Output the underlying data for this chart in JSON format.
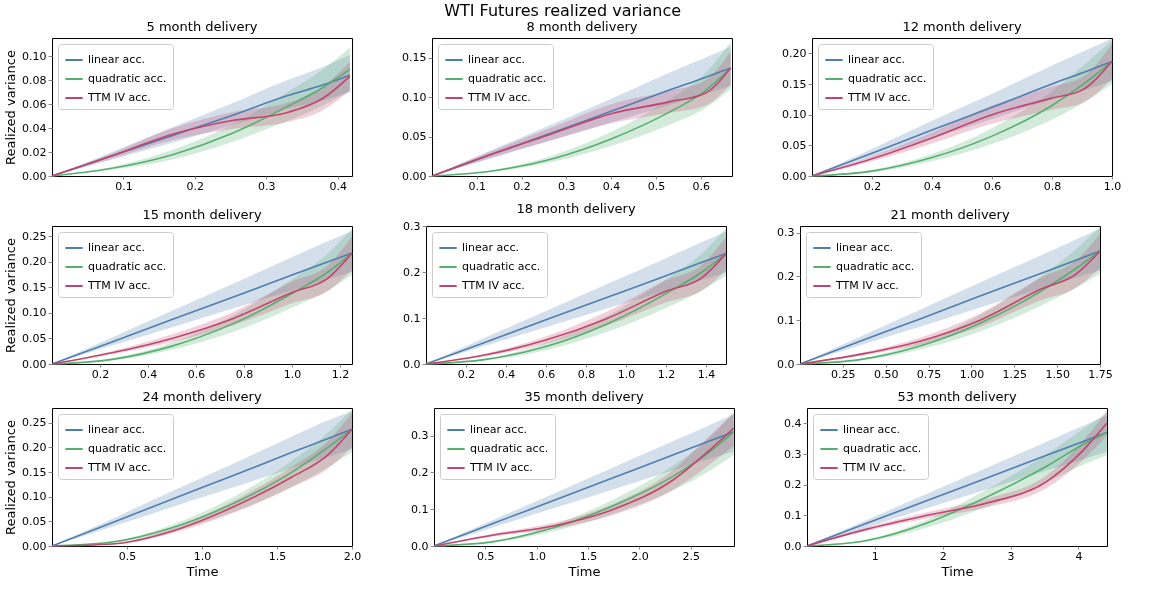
{
  "chart_data": [
    {
      "type": "line",
      "title": "5 month delivery",
      "ylabel": "Realized variance",
      "annotations": [
        "WTI Futures realized variance"
      ],
      "legend": "top left",
      "x": [
        0,
        0.08,
        0.17,
        0.25,
        0.33,
        0.38,
        0.417
      ],
      "xlim": [
        0,
        0.42
      ],
      "xticks": [
        0.1,
        0.2,
        0.3,
        0.4
      ],
      "ylim": [
        0,
        0.115
      ],
      "yticks": [
        {
          "value": 0,
          "label": "0.00"
        },
        {
          "value": 0.02,
          "label": "0.02"
        },
        {
          "value": 0.04,
          "label": "0.04"
        },
        {
          "value": 0.06,
          "label": "0.06"
        },
        {
          "value": 0.08,
          "label": "0.08"
        },
        {
          "value": 0.1,
          "label": "0.10"
        }
      ],
      "series": [
        {
          "name": "linear acc.",
          "color": "#4f7fb0",
          "values": [
            0,
            0.016,
            0.034,
            0.05,
            0.067,
            0.076,
            0.084
          ],
          "upper": [
            0,
            0.019,
            0.041,
            0.06,
            0.08,
            0.091,
            0.101
          ],
          "lower": [
            0,
            0.013,
            0.028,
            0.042,
            0.056,
            0.063,
            0.07
          ]
        },
        {
          "name": "quadratic acc.",
          "color": "#55b06e",
          "values": [
            0,
            0.006,
            0.018,
            0.035,
            0.058,
            0.074,
            0.089
          ],
          "upper": [
            0,
            0.007,
            0.022,
            0.042,
            0.07,
            0.089,
            0.107
          ],
          "lower": [
            0,
            0.005,
            0.014,
            0.028,
            0.046,
            0.059,
            0.071
          ]
        },
        {
          "name": "TTM IV acc.",
          "color": "#c2456e",
          "values": [
            0,
            0.016,
            0.035,
            0.046,
            0.053,
            0.065,
            0.083
          ],
          "upper": [
            0,
            0.018,
            0.04,
            0.053,
            0.061,
            0.075,
            0.095
          ],
          "lower": [
            0,
            0.014,
            0.03,
            0.039,
            0.045,
            0.055,
            0.071
          ]
        }
      ]
    },
    {
      "type": "line",
      "title": "8 month delivery",
      "legend": "top left",
      "x": [
        0,
        0.13,
        0.27,
        0.4,
        0.53,
        0.61,
        0.667
      ],
      "xlim": [
        0,
        0.67
      ],
      "xticks": [
        0.1,
        0.2,
        0.3,
        0.4,
        0.5,
        0.6
      ],
      "ylim": [
        0,
        0.175
      ],
      "yticks": [
        {
          "value": 0,
          "label": "0.00"
        },
        {
          "value": 0.05,
          "label": "0.05"
        },
        {
          "value": 0.1,
          "label": "0.10"
        },
        {
          "value": 0.15,
          "label": "0.15"
        }
      ],
      "series": [
        {
          "name": "linear acc.",
          "color": "#4f7fb0",
          "values": [
            0,
            0.027,
            0.055,
            0.082,
            0.109,
            0.125,
            0.137
          ],
          "upper": [
            0,
            0.032,
            0.066,
            0.098,
            0.131,
            0.15,
            0.164
          ],
          "lower": [
            0,
            0.022,
            0.046,
            0.068,
            0.09,
            0.104,
            0.114
          ]
        },
        {
          "name": "quadratic acc.",
          "color": "#55b06e",
          "values": [
            0,
            0.006,
            0.022,
            0.047,
            0.081,
            0.108,
            0.137
          ],
          "upper": [
            0,
            0.007,
            0.026,
            0.056,
            0.097,
            0.13,
            0.17
          ],
          "lower": [
            0,
            0.005,
            0.018,
            0.038,
            0.065,
            0.086,
            0.11
          ]
        },
        {
          "name": "TTM IV acc.",
          "color": "#c2456e",
          "values": [
            0,
            0.027,
            0.054,
            0.079,
            0.094,
            0.105,
            0.137
          ],
          "upper": [
            0,
            0.031,
            0.062,
            0.091,
            0.108,
            0.121,
            0.158
          ],
          "lower": [
            0,
            0.023,
            0.046,
            0.067,
            0.08,
            0.089,
            0.116
          ]
        }
      ]
    },
    {
      "type": "line",
      "title": "12 month delivery",
      "legend": "top left",
      "x": [
        0,
        0.2,
        0.4,
        0.6,
        0.8,
        0.9,
        1.0
      ],
      "xlim": [
        0,
        1.0
      ],
      "xticks": [
        0.2,
        0.4,
        0.6,
        0.8,
        {
          "value": 1.0,
          "label": "1.0"
        }
      ],
      "ylim": [
        0,
        0.225
      ],
      "yticks": [
        {
          "value": 0,
          "label": "0.00"
        },
        {
          "value": 0.05,
          "label": "0.05"
        },
        {
          "value": 0.1,
          "label": "0.10"
        },
        {
          "value": 0.15,
          "label": "0.15"
        },
        {
          "value": 0.2,
          "label": "0.20"
        }
      ],
      "series": [
        {
          "name": "linear acc.",
          "color": "#4f7fb0",
          "values": [
            0,
            0.037,
            0.075,
            0.112,
            0.15,
            0.168,
            0.187
          ],
          "upper": [
            0,
            0.044,
            0.09,
            0.134,
            0.18,
            0.202,
            0.224
          ],
          "lower": [
            0,
            0.031,
            0.062,
            0.093,
            0.125,
            0.139,
            0.155
          ]
        },
        {
          "name": "quadratic acc.",
          "color": "#55b06e",
          "values": [
            0,
            0.008,
            0.03,
            0.065,
            0.115,
            0.148,
            0.187
          ],
          "upper": [
            0,
            0.01,
            0.036,
            0.078,
            0.138,
            0.178,
            0.221
          ],
          "lower": [
            0,
            0.006,
            0.024,
            0.052,
            0.092,
            0.118,
            0.15
          ]
        },
        {
          "name": "TTM IV acc.",
          "color": "#c2456e",
          "values": [
            0,
            0.028,
            0.062,
            0.1,
            0.127,
            0.14,
            0.187
          ],
          "upper": [
            0,
            0.032,
            0.071,
            0.115,
            0.146,
            0.161,
            0.215
          ],
          "lower": [
            0,
            0.024,
            0.053,
            0.085,
            0.108,
            0.119,
            0.159
          ]
        }
      ]
    },
    {
      "type": "line",
      "title": "15 month delivery",
      "ylabel": "Realized variance",
      "legend": "top left",
      "x": [
        0,
        0.25,
        0.5,
        0.75,
        1.0,
        1.15,
        1.25
      ],
      "xlim": [
        0,
        1.25
      ],
      "xticks": [
        0.2,
        0.4,
        0.6,
        0.8,
        {
          "value": 1.0,
          "label": "1.0"
        },
        1.2
      ],
      "ylim": [
        0,
        0.27
      ],
      "yticks": [
        {
          "value": 0,
          "label": "0.00"
        },
        {
          "value": 0.05,
          "label": "0.05"
        },
        {
          "value": 0.1,
          "label": "0.10"
        },
        {
          "value": 0.15,
          "label": "0.15"
        },
        {
          "value": 0.2,
          "label": "0.20"
        },
        {
          "value": 0.25,
          "label": "0.25"
        }
      ],
      "series": [
        {
          "name": "linear acc.",
          "color": "#4f7fb0",
          "values": [
            0,
            0.043,
            0.087,
            0.13,
            0.174,
            0.2,
            0.217
          ],
          "upper": [
            0,
            0.052,
            0.104,
            0.156,
            0.209,
            0.24,
            0.26
          ],
          "lower": [
            0,
            0.036,
            0.072,
            0.108,
            0.144,
            0.166,
            0.18
          ]
        },
        {
          "name": "quadratic acc.",
          "color": "#55b06e",
          "values": [
            0,
            0.009,
            0.035,
            0.078,
            0.138,
            0.18,
            0.217
          ],
          "upper": [
            0,
            0.011,
            0.042,
            0.094,
            0.166,
            0.216,
            0.265
          ],
          "lower": [
            0,
            0.007,
            0.028,
            0.062,
            0.11,
            0.144,
            0.174
          ]
        },
        {
          "name": "TTM IV acc.",
          "color": "#c2456e",
          "values": [
            0,
            0.022,
            0.05,
            0.088,
            0.14,
            0.168,
            0.217
          ],
          "upper": [
            0,
            0.025,
            0.058,
            0.101,
            0.161,
            0.193,
            0.25
          ],
          "lower": [
            0,
            0.019,
            0.043,
            0.075,
            0.119,
            0.143,
            0.184
          ]
        }
      ]
    },
    {
      "type": "line",
      "title": "18 month delivery",
      "legend": "top left",
      "x": [
        0,
        0.3,
        0.6,
        0.9,
        1.2,
        1.38,
        1.5
      ],
      "xlim": [
        0,
        1.5
      ],
      "xticks": [
        0.2,
        0.4,
        0.6,
        0.8,
        {
          "value": 1.0,
          "label": "1.0"
        },
        1.2,
        1.4
      ],
      "ylim": [
        0,
        0.3
      ],
      "yticks": [
        {
          "value": 0,
          "label": "0.0"
        },
        0.1,
        0.2,
        0.3
      ],
      "series": [
        {
          "name": "linear acc.",
          "color": "#4f7fb0",
          "values": [
            0,
            0.048,
            0.096,
            0.144,
            0.192,
            0.221,
            0.24
          ],
          "upper": [
            0,
            0.058,
            0.115,
            0.173,
            0.23,
            0.265,
            0.288
          ],
          "lower": [
            0,
            0.04,
            0.08,
            0.12,
            0.159,
            0.183,
            0.199
          ]
        },
        {
          "name": "quadratic acc.",
          "color": "#55b06e",
          "values": [
            0,
            0.01,
            0.038,
            0.086,
            0.153,
            0.2,
            0.24
          ],
          "upper": [
            0,
            0.012,
            0.046,
            0.103,
            0.184,
            0.24,
            0.295
          ],
          "lower": [
            0,
            0.008,
            0.03,
            0.069,
            0.122,
            0.16,
            0.192
          ]
        },
        {
          "name": "TTM IV acc.",
          "color": "#c2456e",
          "values": [
            0,
            0.02,
            0.052,
            0.098,
            0.158,
            0.188,
            0.24
          ],
          "upper": [
            0,
            0.023,
            0.06,
            0.113,
            0.182,
            0.216,
            0.276
          ],
          "lower": [
            0,
            0.017,
            0.044,
            0.083,
            0.134,
            0.16,
            0.204
          ]
        }
      ]
    },
    {
      "type": "line",
      "title": "21 month delivery",
      "legend": "top left",
      "x": [
        0,
        0.35,
        0.7,
        1.05,
        1.4,
        1.61,
        1.75
      ],
      "xlim": [
        0,
        1.75
      ],
      "xticks": [
        0.25,
        {
          "value": 0.5,
          "label": "0.50"
        },
        0.75,
        {
          "value": 1.0,
          "label": "1.00"
        },
        1.25,
        {
          "value": 1.5,
          "label": "1.50"
        },
        1.75
      ],
      "ylim": [
        0,
        0.315
      ],
      "yticks": [
        {
          "value": 0,
          "label": "0.0"
        },
        0.1,
        0.2,
        0.3
      ],
      "series": [
        {
          "name": "linear acc.",
          "color": "#4f7fb0",
          "values": [
            0,
            0.052,
            0.103,
            0.155,
            0.206,
            0.237,
            0.258
          ],
          "upper": [
            0,
            0.062,
            0.124,
            0.186,
            0.247,
            0.284,
            0.31
          ],
          "lower": [
            0,
            0.043,
            0.085,
            0.129,
            0.171,
            0.197,
            0.214
          ]
        },
        {
          "name": "quadratic acc.",
          "color": "#55b06e",
          "values": [
            0,
            0.01,
            0.041,
            0.093,
            0.165,
            0.218,
            0.258
          ],
          "upper": [
            0,
            0.012,
            0.049,
            0.112,
            0.198,
            0.262,
            0.313
          ],
          "lower": [
            0,
            0.008,
            0.033,
            0.074,
            0.132,
            0.174,
            0.206
          ]
        },
        {
          "name": "TTM IV acc.",
          "color": "#c2456e",
          "values": [
            0,
            0.022,
            0.052,
            0.1,
            0.17,
            0.205,
            0.258
          ],
          "upper": [
            0,
            0.025,
            0.06,
            0.115,
            0.196,
            0.236,
            0.297
          ],
          "lower": [
            0,
            0.019,
            0.044,
            0.085,
            0.145,
            0.174,
            0.219
          ]
        }
      ]
    },
    {
      "type": "line",
      "title": "24 month delivery",
      "xlabel": "Time",
      "ylabel": "Realized variance",
      "legend": "top left",
      "x": [
        0,
        0.4,
        0.8,
        1.2,
        1.6,
        1.84,
        2.0
      ],
      "xlim": [
        0,
        2.0
      ],
      "xticks": [
        0.5,
        {
          "value": 1.0,
          "label": "1.0"
        },
        1.5,
        {
          "value": 2.0,
          "label": "2.0"
        }
      ],
      "ylim": [
        0,
        0.28
      ],
      "yticks": [
        {
          "value": 0,
          "label": "0.00"
        },
        {
          "value": 0.05,
          "label": "0.05"
        },
        {
          "value": 0.1,
          "label": "0.10"
        },
        {
          "value": 0.15,
          "label": "0.15"
        },
        {
          "value": 0.2,
          "label": "0.20"
        },
        {
          "value": 0.25,
          "label": "0.25"
        }
      ],
      "series": [
        {
          "name": "linear acc.",
          "color": "#4f7fb0",
          "values": [
            0,
            0.047,
            0.095,
            0.142,
            0.19,
            0.218,
            0.237
          ],
          "upper": [
            0,
            0.055,
            0.111,
            0.166,
            0.222,
            0.255,
            0.273
          ],
          "lower": [
            0,
            0.039,
            0.079,
            0.118,
            0.158,
            0.181,
            0.197
          ]
        },
        {
          "name": "quadratic acc.",
          "color": "#55b06e",
          "values": [
            0,
            0.008,
            0.037,
            0.085,
            0.15,
            0.2,
            0.237
          ],
          "upper": [
            0,
            0.009,
            0.043,
            0.098,
            0.173,
            0.23,
            0.278
          ],
          "lower": [
            0,
            0.006,
            0.03,
            0.068,
            0.12,
            0.16,
            0.19
          ]
        },
        {
          "name": "TTM IV acc.",
          "color": "#c2456e",
          "values": [
            0,
            0.004,
            0.03,
            0.078,
            0.14,
            0.185,
            0.237
          ],
          "upper": [
            0,
            0.005,
            0.035,
            0.09,
            0.161,
            0.213,
            0.27
          ],
          "lower": [
            0,
            0.003,
            0.026,
            0.066,
            0.119,
            0.157,
            0.201
          ]
        }
      ]
    },
    {
      "type": "line",
      "title": "35 month delivery",
      "xlabel": "Time",
      "legend": "top left",
      "x": [
        0,
        0.58,
        1.17,
        1.75,
        2.33,
        2.68,
        2.917
      ],
      "xlim": [
        0,
        2.92
      ],
      "xticks": [
        0.5,
        {
          "value": 1.0,
          "label": "1.0"
        },
        1.5,
        {
          "value": 2.0,
          "label": "2.0"
        },
        2.5
      ],
      "ylim": [
        0,
        0.375
      ],
      "yticks": [
        {
          "value": 0,
          "label": "0.0"
        },
        0.1,
        0.2,
        0.3
      ],
      "series": [
        {
          "name": "linear acc.",
          "color": "#4f7fb0",
          "values": [
            0,
            0.062,
            0.124,
            0.186,
            0.248,
            0.285,
            0.31
          ],
          "upper": [
            0,
            0.071,
            0.143,
            0.214,
            0.285,
            0.328,
            0.357
          ],
          "lower": [
            0,
            0.051,
            0.103,
            0.154,
            0.206,
            0.237,
            0.257
          ]
        },
        {
          "name": "quadratic acc.",
          "color": "#55b06e",
          "values": [
            0,
            0.012,
            0.05,
            0.11,
            0.19,
            0.255,
            0.31
          ],
          "upper": [
            0,
            0.014,
            0.058,
            0.127,
            0.219,
            0.293,
            0.365
          ],
          "lower": [
            0,
            0.01,
            0.04,
            0.088,
            0.152,
            0.204,
            0.248
          ]
        },
        {
          "name": "TTM IV acc.",
          "color": "#c2456e",
          "values": [
            0,
            0.03,
            0.055,
            0.1,
            0.18,
            0.26,
            0.32
          ],
          "upper": [
            0,
            0.034,
            0.063,
            0.115,
            0.207,
            0.299,
            0.36
          ],
          "lower": [
            0,
            0.026,
            0.047,
            0.085,
            0.153,
            0.221,
            0.272
          ]
        }
      ]
    },
    {
      "type": "line",
      "title": "53 month delivery",
      "xlabel": "Time",
      "legend": "top left",
      "x": [
        0,
        0.88,
        1.77,
        2.65,
        3.53,
        4.06,
        4.417
      ],
      "xlim": [
        0,
        4.42
      ],
      "xticks": [
        1,
        2,
        3,
        4
      ],
      "ylim": [
        0,
        0.45
      ],
      "yticks": [
        {
          "value": 0,
          "label": "0.0"
        },
        0.1,
        0.2,
        0.3,
        0.4
      ],
      "series": [
        {
          "name": "linear acc.",
          "color": "#4f7fb0",
          "values": [
            0,
            0.074,
            0.148,
            0.222,
            0.296,
            0.34,
            0.37
          ],
          "upper": [
            0,
            0.085,
            0.17,
            0.255,
            0.34,
            0.391,
            0.426
          ],
          "lower": [
            0,
            0.061,
            0.123,
            0.184,
            0.246,
            0.282,
            0.307
          ]
        },
        {
          "name": "quadratic acc.",
          "color": "#55b06e",
          "values": [
            0,
            0.018,
            0.075,
            0.16,
            0.26,
            0.33,
            0.37
          ],
          "upper": [
            0,
            0.021,
            0.086,
            0.184,
            0.299,
            0.38,
            0.435
          ],
          "lower": [
            0,
            0.014,
            0.06,
            0.128,
            0.208,
            0.264,
            0.296
          ]
        },
        {
          "name": "TTM IV acc.",
          "color": "#c2456e",
          "values": [
            0,
            0.055,
            0.1,
            0.14,
            0.21,
            0.31,
            0.4
          ],
          "upper": [
            0,
            0.061,
            0.11,
            0.154,
            0.231,
            0.341,
            0.44
          ],
          "lower": [
            0,
            0.05,
            0.09,
            0.126,
            0.189,
            0.279,
            0.36
          ]
        }
      ]
    }
  ]
}
